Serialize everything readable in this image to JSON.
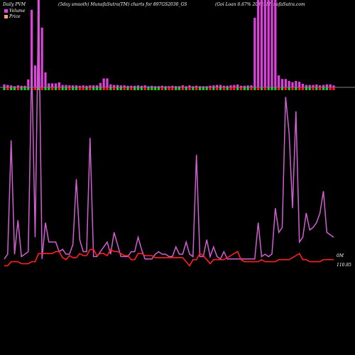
{
  "header": {
    "left": "Daily PVM",
    "center": "(5day smooth) MunafaSutra(TM) charts for 897GS2030_GS",
    "right": "(Goi  Loan  6.67%  2030) MunafaSutra.com"
  },
  "legend": [
    {
      "label": "Volume",
      "color": "#e040e0"
    },
    {
      "label": "Price",
      "color": "#f4a070"
    }
  ],
  "right_labels": {
    "volume": "0M",
    "price": "110.85"
  },
  "colors": {
    "volume_bar": "#e040e0",
    "up_bar": "#22cc22",
    "down_bar": "#ff2020",
    "volume_line": "#d060d0",
    "price_line": "#ff2020",
    "zero_line": "#aaaaaa"
  },
  "chart_data": {
    "type": "line",
    "title": "(5day smooth) MunafaSutra(TM) charts for 897GS2030_GS",
    "series": [
      {
        "name": "Volume",
        "values": [
          0.3,
          0.5,
          5.2,
          0.5,
          1.9,
          0.4,
          0.5,
          0.6,
          8.3,
          1.2,
          11.0,
          0.3,
          1.8,
          1.0,
          1.0,
          1.0,
          0.6,
          0.7,
          0.5,
          0.5,
          0.9,
          3.6,
          1.1,
          0.6,
          0.6,
          5.3,
          0.4,
          0.4,
          0.6,
          0.8,
          1.0,
          0.5,
          1.4,
          0.9,
          0.4,
          0.4,
          0.4,
          0.6,
          0.6,
          1.2,
          0.7,
          0.3,
          0.3,
          0.3,
          0.5,
          0.6,
          0.5,
          0.5,
          0.4,
          0.4,
          0.8,
          0.5,
          0.5,
          1.0,
          0.5,
          0.4,
          4.6,
          0.4,
          0.4,
          1.1,
          0.4,
          0.8,
          0.4,
          0.3,
          0.6,
          0.3,
          0.3,
          0.3,
          0.3,
          0.3,
          0.3,
          0.3,
          0.3,
          0.3,
          1.8,
          0.4,
          0.5,
          0.4,
          0.5,
          2.4,
          1.4,
          1.6,
          7.0,
          5.5,
          2.4,
          6.4,
          1.0,
          1.2,
          2.2,
          1.5,
          1.6,
          1.8,
          2.2,
          3.1,
          1.4,
          1.3,
          1.2
        ]
      },
      {
        "name": "Price",
        "values": [
          110.8,
          110.8,
          110.82,
          110.82,
          110.82,
          110.81,
          110.81,
          110.81,
          110.82,
          110.82,
          110.86,
          110.86,
          110.86,
          110.86,
          110.86,
          110.87,
          110.87,
          110.84,
          110.83,
          110.85,
          110.84,
          110.84,
          110.86,
          110.85,
          110.85,
          110.88,
          110.88,
          110.85,
          110.86,
          110.86,
          110.85,
          110.88,
          110.87,
          110.87,
          110.86,
          110.85,
          110.85,
          110.83,
          110.83,
          110.86,
          110.86,
          110.85,
          110.85,
          110.85,
          110.84,
          110.84,
          110.84,
          110.84,
          110.84,
          110.84,
          110.84,
          110.84,
          110.84,
          110.82,
          110.8,
          110.83,
          110.83,
          110.86,
          110.85,
          110.83,
          110.81,
          110.83,
          110.83,
          110.83,
          110.83,
          110.84,
          110.85,
          110.86,
          110.87,
          110.83,
          110.82,
          110.82,
          110.82,
          110.82,
          110.82,
          110.83,
          110.82,
          110.82,
          110.82,
          110.82,
          110.83,
          110.83,
          110.83,
          110.83,
          110.84,
          110.85,
          110.86,
          110.83,
          110.83,
          110.82,
          110.82,
          110.82,
          110.82,
          110.83,
          110.83,
          110.83,
          110.83
        ]
      }
    ],
    "volume_bars": [
      15,
      12,
      10,
      6,
      10,
      8,
      8,
      40,
      390,
      110,
      440,
      300,
      75,
      20,
      20,
      20,
      25,
      12,
      12,
      10,
      10,
      10,
      8,
      10,
      8,
      10,
      10,
      10,
      22,
      45,
      45,
      15,
      12,
      12,
      10,
      10,
      8,
      8,
      8,
      10,
      8,
      10,
      6,
      8,
      6,
      6,
      8,
      6,
      6,
      8,
      6,
      6,
      10,
      6,
      10,
      6,
      8,
      6,
      6,
      6,
      8,
      10,
      12,
      12,
      8,
      8,
      10,
      12,
      14,
      8,
      8,
      10,
      10,
      350,
      440,
      440,
      440,
      440,
      440,
      440,
      60,
      42,
      42,
      32,
      26,
      32,
      28,
      18,
      12,
      12,
      12,
      14,
      10,
      12,
      15,
      15,
      10
    ],
    "pvm_bars": [
      1,
      -1,
      1,
      1,
      -1,
      1,
      1,
      1,
      -1,
      -1,
      1,
      -1,
      1,
      1,
      -1,
      1,
      -1,
      1,
      1,
      -1,
      1,
      1,
      -1,
      -1,
      1,
      -1,
      1,
      1,
      1,
      -1,
      -1,
      1,
      -1,
      1,
      1,
      -1,
      1,
      -1,
      1,
      1,
      1,
      -1,
      1,
      1,
      1,
      1,
      -1,
      1,
      -1,
      -1,
      1,
      1,
      -1,
      1,
      -1,
      1,
      -1,
      1,
      1,
      1,
      -1,
      1,
      -1,
      1,
      -1,
      1,
      -1,
      -1,
      1,
      -1,
      1,
      1,
      -1,
      1,
      -1,
      1,
      -1,
      1,
      1,
      1,
      -1,
      1,
      -1,
      1,
      -1,
      1,
      -1,
      -1,
      1,
      1,
      -1,
      1,
      -1,
      1,
      1,
      -1,
      -1
    ]
  }
}
